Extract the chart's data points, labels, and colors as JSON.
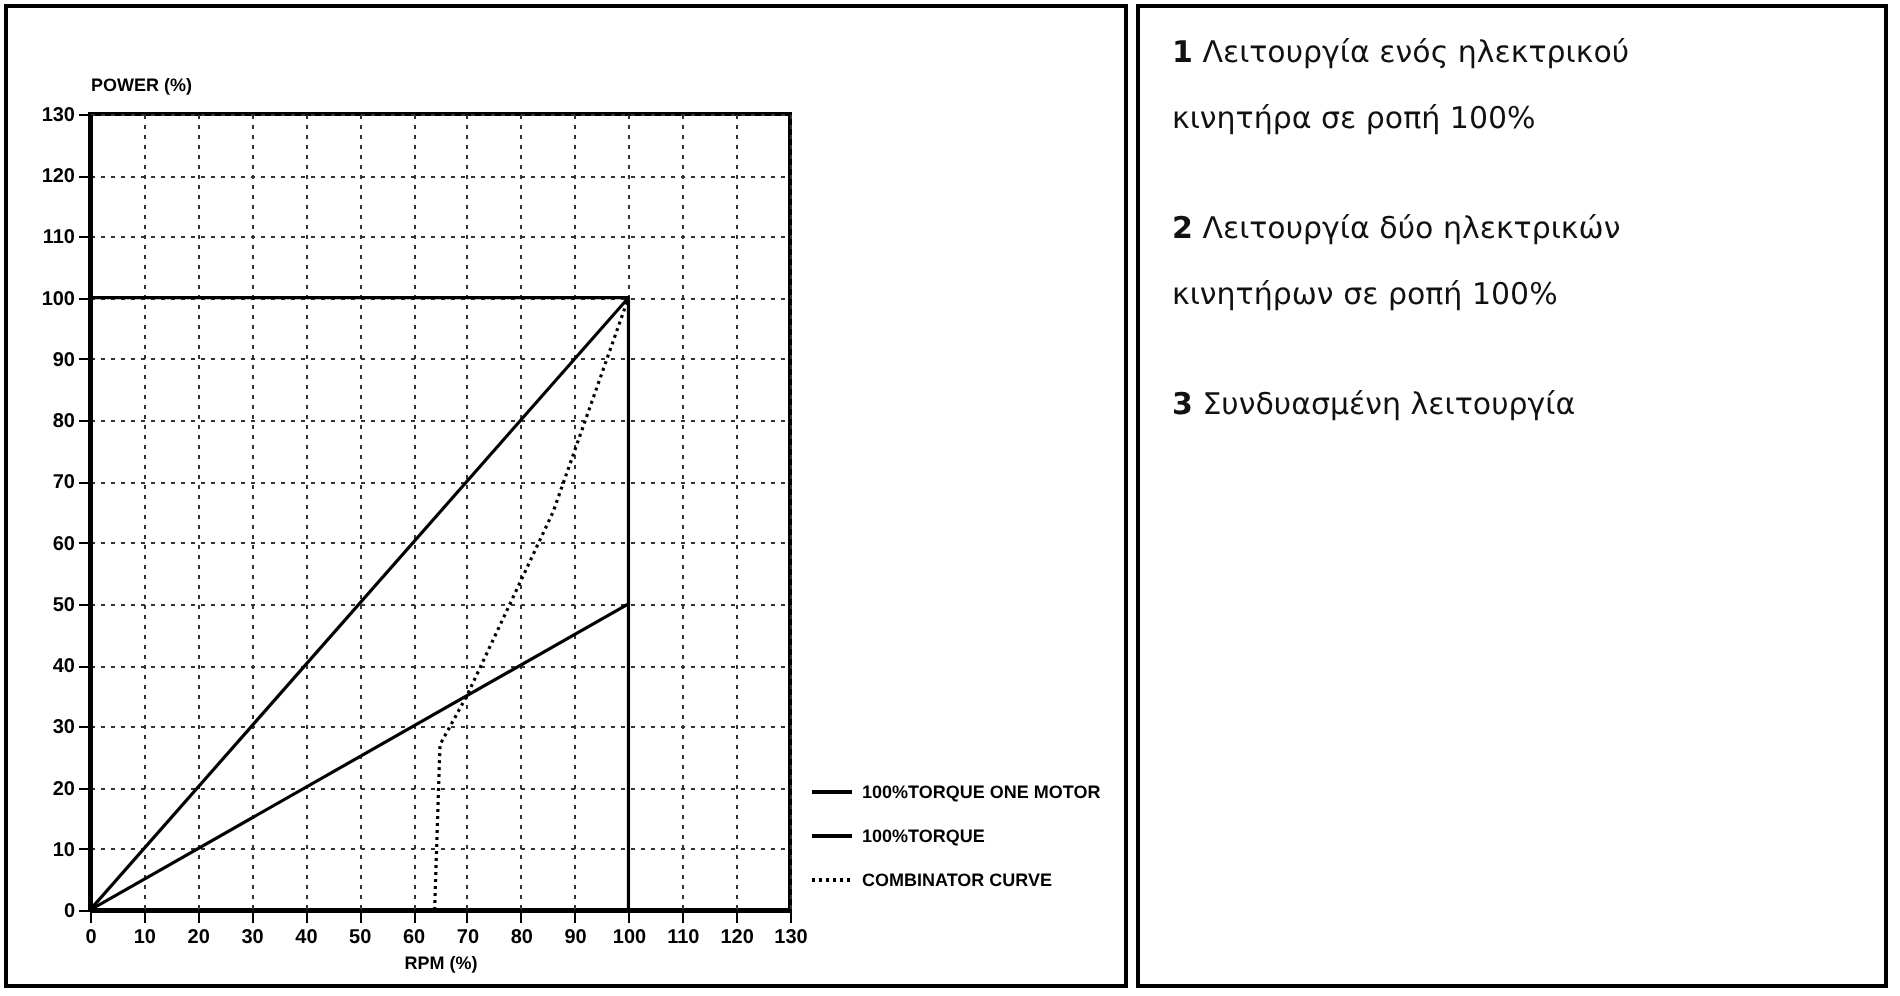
{
  "chart_data": {
    "type": "line",
    "xlabel": "RPM (%)",
    "ylabel": "POWER (%)",
    "xlim": [
      0,
      130
    ],
    "xticks": [
      0,
      10,
      20,
      30,
      40,
      50,
      60,
      70,
      80,
      90,
      100,
      110,
      120,
      130
    ],
    "ylim": [
      0,
      130
    ],
    "yticks": [
      0,
      10,
      20,
      30,
      40,
      50,
      60,
      70,
      80,
      90,
      100,
      110,
      120,
      130
    ],
    "grid": true,
    "legend": "bottom right",
    "marker": "none",
    "series": [
      {
        "name": "100%TORQUE ONE MOTOR",
        "color": "#000000",
        "x": [
          0,
          100
        ],
        "values": [
          0,
          50
        ],
        "line_style": "solid"
      },
      {
        "name": "100%TORQUE",
        "color": "#000000",
        "x": [
          0,
          100
        ],
        "values": [
          0,
          100
        ],
        "line_style": "solid"
      },
      {
        "name": "COMBINATOR CURVE",
        "color": "#000000",
        "x": [
          64,
          65,
          70,
          78,
          86,
          92,
          100
        ],
        "values": [
          0,
          27,
          35,
          50,
          65,
          80,
          100
        ],
        "line_style": "dotted"
      },
      {
        "color": "#000000",
        "x": [
          0,
          100,
          100
        ],
        "values": [
          100,
          100,
          0
        ],
        "line_style": "solid"
      }
    ],
    "annotations": [
      "1 Λειτουργία ενός ηλεκτρικού κινητήρα σε ροπή 100%",
      "2 Λειτουργία δύο ηλεκτρικών κινητήρων σε ροπή 100%",
      "3 Συνδυασμένη λειτουργία"
    ]
  }
}
